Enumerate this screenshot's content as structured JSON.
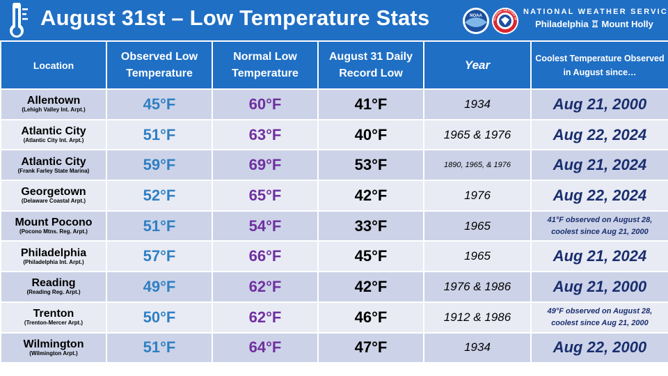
{
  "header": {
    "title": "August 31st – Low Temperature Stats",
    "org_name": "NATIONAL WEATHER SERVICE",
    "office": "Philadelphia ♖ Mount Holly",
    "noaa_logo_text": "NOAA",
    "nws_logo_text": "NATIONAL WEATHER SERVICE",
    "colors": {
      "header_bg": "#1f6fc5",
      "observed": "#2f7fc3",
      "normal": "#7030a0",
      "coolest": "#1a2e6e"
    }
  },
  "table": {
    "columns": [
      "Location",
      "Observed Low Temperature",
      "Normal Low Temperature",
      "August 31 Daily Record Low",
      "Year",
      "Coolest Temperature Observed in August since…"
    ],
    "rows": [
      {
        "name": "Allentown",
        "station": "(Lehigh Valley Int. Arpt.)",
        "observed": "45°F",
        "normal": "60°F",
        "record": "41°F",
        "year": "1934",
        "coolest": "Aug 21, 2000"
      },
      {
        "name": "Atlantic City",
        "station": "(Atlantic City Int. Arpt.)",
        "observed": "51°F",
        "normal": "63°F",
        "record": "40°F",
        "year": "1965 & 1976",
        "coolest": "Aug 22, 2024"
      },
      {
        "name": "Atlantic City",
        "station": "(Frank Farley State Marina)",
        "observed": "59°F",
        "normal": "69°F",
        "record": "53°F",
        "year": "1890, 1965, & 1976",
        "coolest": "Aug 21, 2024"
      },
      {
        "name": "Georgetown",
        "station": "(Delaware Coastal Arpt.)",
        "observed": "52°F",
        "normal": "65°F",
        "record": "42°F",
        "year": "1976",
        "coolest": "Aug 22, 2024"
      },
      {
        "name": "Mount Pocono",
        "station": "(Pocono Mtns. Reg. Arpt.)",
        "observed": "51°F",
        "normal": "54°F",
        "record": "33°F",
        "year": "1965",
        "coolest": "41°F observed on August 28, coolest since Aug 21, 2000"
      },
      {
        "name": "Philadelphia",
        "station": "(Philadelphia Int. Arpt.)",
        "observed": "57°F",
        "normal": "66°F",
        "record": "45°F",
        "year": "1965",
        "coolest": "Aug 21, 2024"
      },
      {
        "name": "Reading",
        "station": "(Reading Reg. Arpt.)",
        "observed": "49°F",
        "normal": "62°F",
        "record": "42°F",
        "year": "1976 & 1986",
        "coolest": "Aug 21, 2000"
      },
      {
        "name": "Trenton",
        "station": "(Trenton-Mercer Arpt.)",
        "observed": "50°F",
        "normal": "62°F",
        "record": "46°F",
        "year": "1912 & 1986",
        "coolest": "49°F observed on August 28, coolest since Aug 21, 2000"
      },
      {
        "name": "Wilmington",
        "station": "(Wilmington Arpt.)",
        "observed": "51°F",
        "normal": "64°F",
        "record": "47°F",
        "year": "1934",
        "coolest": "Aug 22, 2000"
      }
    ]
  }
}
